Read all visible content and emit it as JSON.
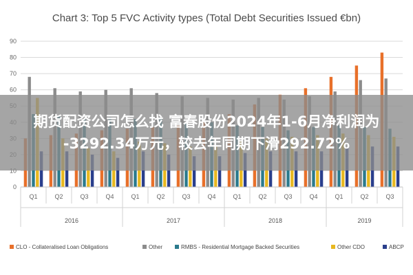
{
  "overlay": {
    "line1": "期货配资公司怎么找 富春股份2024年1-6月净利润为",
    "line2": "-3292.34万元，较去年同期下滑292.72%"
  },
  "chart_data": {
    "type": "bar",
    "title": "Chart 3: Top 5 FVC Activity types (Total Debt Securities Issued €bn)",
    "categories": [
      "Q1",
      "Q2",
      "Q3",
      "Q4",
      "Q1",
      "Q2",
      "Q3",
      "Q4",
      "Q1",
      "Q2",
      "Q3",
      "Q4",
      "Q1",
      "Q2",
      "Q3"
    ],
    "groups": [
      {
        "label": "2016",
        "start": 0,
        "end": 3
      },
      {
        "label": "2017",
        "start": 4,
        "end": 7
      },
      {
        "label": "2018",
        "start": 8,
        "end": 11
      },
      {
        "label": "2019",
        "start": 12,
        "end": 14
      }
    ],
    "ylim": [
      0,
      90
    ],
    "yticks": [
      0,
      10,
      20,
      30,
      40,
      50,
      60,
      70,
      80,
      90
    ],
    "grid": true,
    "legend_position": "bottom",
    "series": [
      {
        "name": "CLO - Collateralised Loan Obligations",
        "color": "#e8702a",
        "values": [
          30,
          32,
          33,
          35,
          36,
          37,
          38,
          40,
          45,
          51,
          57,
          61,
          68,
          75,
          83
        ]
      },
      {
        "name": "Other",
        "color": "#8c8c8c",
        "values": [
          68,
          61,
          59,
          60,
          61,
          58,
          56,
          55,
          54,
          55,
          54,
          56,
          59,
          66,
          67
        ]
      },
      {
        "name": "RMBS - Residential Mortgage Backed Securities",
        "color": "#2b7a8c",
        "values": [
          45,
          44,
          42,
          43,
          42,
          42,
          40,
          40,
          38,
          37,
          35,
          37,
          38,
          37,
          36
        ]
      },
      {
        "name": "Other CDO",
        "color": "#e8b820",
        "values": [
          55,
          30,
          24,
          22,
          28,
          27,
          25,
          25,
          28,
          30,
          31,
          32,
          33,
          32,
          31
        ]
      },
      {
        "name": "ABCP",
        "color": "#2a3f8c",
        "values": [
          22,
          22,
          20,
          18,
          22,
          20,
          19,
          19,
          21,
          22,
          22,
          22,
          24,
          25,
          25
        ]
      }
    ]
  }
}
